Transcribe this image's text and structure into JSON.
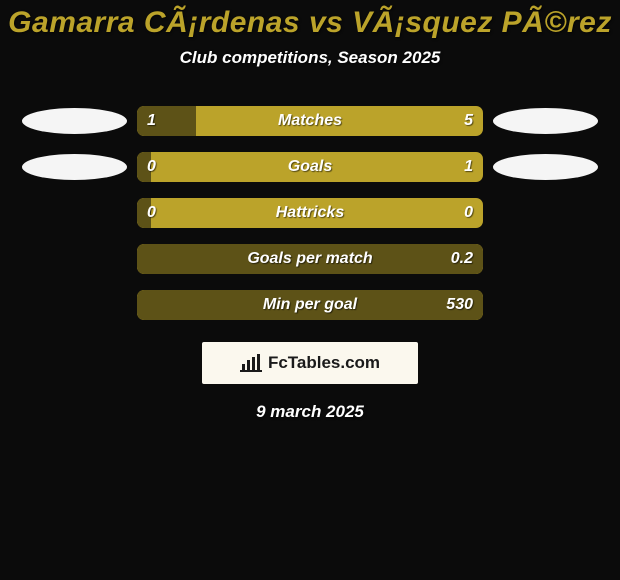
{
  "background_color": "#0b0b0b",
  "title": {
    "text": "Gamarra CÃ¡rdenas vs VÃ¡squez PÃ©rez",
    "color": "#bba32a",
    "fontsize": 30
  },
  "subtitle": {
    "text": "Club competitions, Season 2025",
    "color": "#ffffff",
    "fontsize": 17
  },
  "bar_style": {
    "track_color": "#bba32a",
    "fill_color": "#5d5217",
    "track_width": 346,
    "track_height": 30,
    "border_radius": 7,
    "value_color": "#ffffff",
    "label_color": "#ffffff",
    "value_fontsize": 16,
    "label_fontsize": 16
  },
  "ellipse": {
    "color": "#f5f5f5",
    "width": 105,
    "height": 26
  },
  "rows": [
    {
      "label": "Matches",
      "left": "1",
      "right": "5",
      "fill_pct": 17,
      "ellipses": true
    },
    {
      "label": "Goals",
      "left": "0",
      "right": "1",
      "fill_pct": 4,
      "ellipses": true
    },
    {
      "label": "Hattricks",
      "left": "0",
      "right": "0",
      "fill_pct": 4,
      "ellipses": false
    },
    {
      "label": "Goals per match",
      "left": "",
      "right": "0.2",
      "fill_pct": 100,
      "ellipses": false
    },
    {
      "label": "Min per goal",
      "left": "",
      "right": "530",
      "fill_pct": 100,
      "ellipses": false
    }
  ],
  "branding": {
    "bg_color": "#fbf8ee",
    "text_color": "#1a1a1a",
    "text": "FcTables.com",
    "fontsize": 17
  },
  "date": {
    "text": "9 march 2025",
    "color": "#ffffff",
    "fontsize": 17
  }
}
